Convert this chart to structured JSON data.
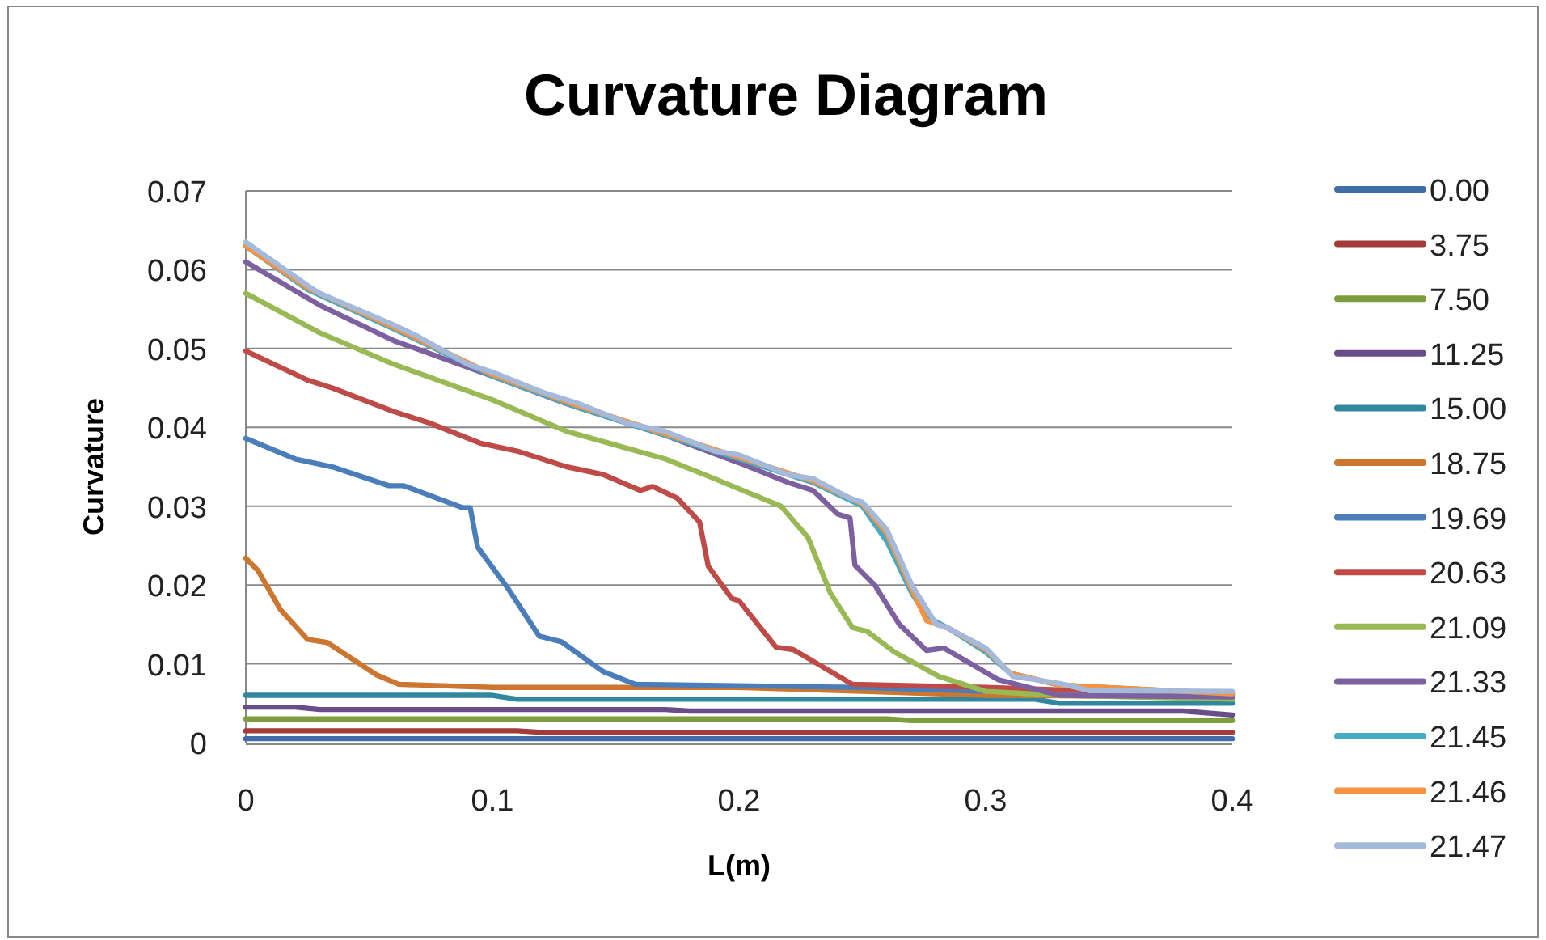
{
  "chart_data": {
    "type": "line",
    "title": "Curvature Diagram",
    "xlabel": "L(m)",
    "ylabel": "Curvature",
    "xlim": [
      0,
      0.4
    ],
    "xticks": [
      0,
      0.1,
      0.2,
      0.3,
      0.4
    ],
    "ylim": [
      0,
      0.07
    ],
    "yticks": [
      0,
      0.01,
      0.02,
      0.03,
      0.04,
      0.05,
      0.06,
      0.07
    ],
    "grid": "y",
    "legend": "right",
    "marker": "none",
    "line_style": "solid",
    "series": [
      {
        "name": "0.00",
        "color": "#3e6da7",
        "x": [
          0,
          0.2,
          0.4
        ],
        "values": [
          0.0005,
          0.0005,
          0.0005
        ]
      },
      {
        "name": "3.75",
        "color": "#a33b38",
        "x": [
          0,
          0.11,
          0.12,
          0.4
        ],
        "values": [
          0.0015,
          0.0015,
          0.0013,
          0.0013
        ]
      },
      {
        "name": "7.50",
        "color": "#7e9d3f",
        "x": [
          0,
          0.26,
          0.27,
          0.4
        ],
        "values": [
          0.003,
          0.003,
          0.0028,
          0.0028
        ]
      },
      {
        "name": "11.25",
        "color": "#684d8a",
        "x": [
          0,
          0.02,
          0.03,
          0.17,
          0.18,
          0.38,
          0.4
        ],
        "values": [
          0.0045,
          0.0045,
          0.0042,
          0.0042,
          0.004,
          0.004,
          0.0035
        ]
      },
      {
        "name": "15.00",
        "color": "#30889e",
        "x": [
          0,
          0.1,
          0.11,
          0.32,
          0.33,
          0.4
        ],
        "values": [
          0.006,
          0.006,
          0.0055,
          0.0055,
          0.005,
          0.005
        ]
      },
      {
        "name": "18.75",
        "color": "#cc7630",
        "x": [
          0,
          0.005,
          0.014,
          0.025,
          0.033,
          0.053,
          0.062,
          0.1,
          0.2,
          0.25,
          0.3,
          0.4
        ],
        "values": [
          0.0234,
          0.0218,
          0.0169,
          0.0131,
          0.0127,
          0.0086,
          0.0074,
          0.007,
          0.007,
          0.0065,
          0.006,
          0.0058
        ]
      },
      {
        "name": "19.69",
        "color": "#4a7ebb",
        "x": [
          0,
          0.02,
          0.036,
          0.058,
          0.064,
          0.088,
          0.091,
          0.094,
          0.106,
          0.119,
          0.128,
          0.145,
          0.158,
          0.25,
          0.3,
          0.4
        ],
        "values": [
          0.0386,
          0.036,
          0.0349,
          0.0326,
          0.0326,
          0.0298,
          0.0298,
          0.0248,
          0.0197,
          0.0135,
          0.0128,
          0.009,
          0.0074,
          0.007,
          0.0065,
          0.0062
        ]
      },
      {
        "name": "20.63",
        "color": "#be4b48",
        "x": [
          0,
          0.025,
          0.035,
          0.06,
          0.075,
          0.095,
          0.11,
          0.13,
          0.145,
          0.16,
          0.165,
          0.175,
          0.184,
          0.1875,
          0.197,
          0.2,
          0.215,
          0.222,
          0.246,
          0.3,
          0.35,
          0.4
        ],
        "values": [
          0.0497,
          0.046,
          0.045,
          0.042,
          0.0405,
          0.038,
          0.037,
          0.035,
          0.034,
          0.032,
          0.0325,
          0.031,
          0.028,
          0.0224,
          0.0183,
          0.018,
          0.0121,
          0.0118,
          0.0074,
          0.007,
          0.0065,
          0.006
        ]
      },
      {
        "name": "21.09",
        "color": "#98b954",
        "x": [
          0,
          0.03,
          0.06,
          0.1,
          0.13,
          0.17,
          0.19,
          0.217,
          0.228,
          0.237,
          0.246,
          0.252,
          0.263,
          0.281,
          0.3,
          0.33,
          0.4
        ],
        "values": [
          0.057,
          0.052,
          0.048,
          0.0435,
          0.0395,
          0.036,
          0.0335,
          0.03,
          0.026,
          0.019,
          0.0146,
          0.0141,
          0.0115,
          0.0084,
          0.0065,
          0.006,
          0.0055
        ]
      },
      {
        "name": "21.33",
        "color": "#7d60a0",
        "x": [
          0,
          0.03,
          0.06,
          0.1,
          0.13,
          0.17,
          0.2,
          0.22,
          0.23,
          0.24,
          0.245,
          0.247,
          0.255,
          0.265,
          0.276,
          0.283,
          0.305,
          0.33,
          0.4
        ],
        "values": [
          0.061,
          0.0555,
          0.051,
          0.0465,
          0.043,
          0.039,
          0.0355,
          0.033,
          0.032,
          0.029,
          0.0285,
          0.0225,
          0.02,
          0.015,
          0.0117,
          0.012,
          0.008,
          0.006,
          0.0058
        ]
      },
      {
        "name": "21.45",
        "color": "#46aac5",
        "x": [
          0,
          0.025,
          0.06,
          0.1,
          0.135,
          0.17,
          0.2,
          0.23,
          0.25,
          0.26,
          0.27,
          0.276,
          0.285,
          0.3,
          0.31,
          0.33,
          0.4
        ],
        "values": [
          0.063,
          0.0575,
          0.0525,
          0.0465,
          0.0425,
          0.039,
          0.036,
          0.033,
          0.03,
          0.0255,
          0.019,
          0.016,
          0.0145,
          0.0115,
          0.0088,
          0.0073,
          0.0062
        ]
      },
      {
        "name": "21.46",
        "color": "#f69240",
        "x": [
          0,
          0.025,
          0.06,
          0.1,
          0.135,
          0.17,
          0.2,
          0.23,
          0.25,
          0.26,
          0.27,
          0.276,
          0.285,
          0.3,
          0.31,
          0.33,
          0.4
        ],
        "values": [
          0.063,
          0.0577,
          0.0527,
          0.0467,
          0.0427,
          0.0392,
          0.0362,
          0.0332,
          0.0303,
          0.0265,
          0.0195,
          0.0155,
          0.0145,
          0.0118,
          0.0088,
          0.0073,
          0.0062
        ]
      },
      {
        "name": "21.47",
        "color": "#a5b9db",
        "x": [
          0,
          0.025,
          0.03,
          0.06,
          0.07,
          0.09,
          0.1,
          0.12,
          0.135,
          0.155,
          0.17,
          0.19,
          0.2,
          0.22,
          0.23,
          0.245,
          0.25,
          0.26,
          0.27,
          0.28,
          0.285,
          0.3,
          0.311,
          0.32,
          0.33,
          0.342,
          0.4
        ],
        "values": [
          0.0635,
          0.058,
          0.057,
          0.053,
          0.0515,
          0.048,
          0.047,
          0.0445,
          0.043,
          0.0405,
          0.0395,
          0.037,
          0.0365,
          0.034,
          0.0335,
          0.031,
          0.0305,
          0.027,
          0.02,
          0.015,
          0.0145,
          0.012,
          0.0084,
          0.008,
          0.0075,
          0.0066,
          0.0065
        ]
      }
    ]
  }
}
